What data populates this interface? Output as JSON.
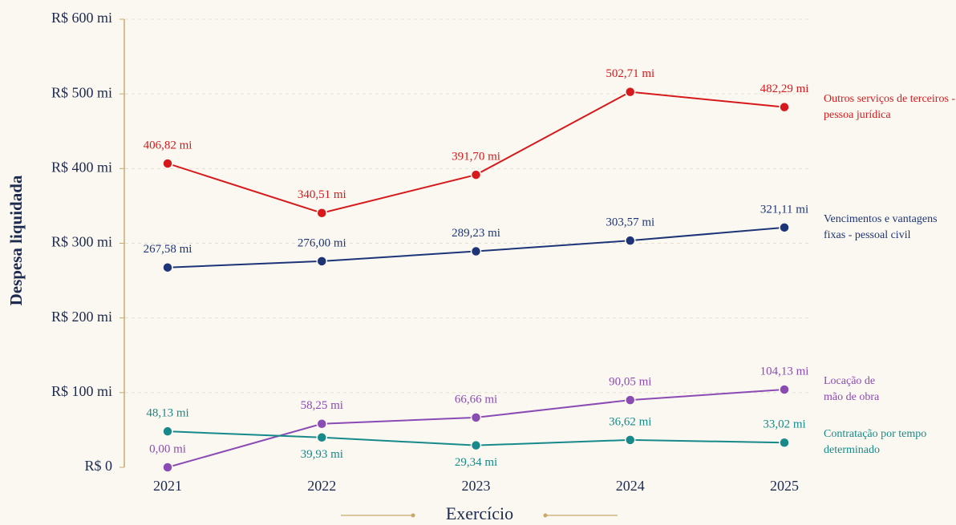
{
  "chart_data": {
    "type": "line",
    "x_label": "Exercício",
    "y_label": "Despesa liquidada",
    "categories": [
      "2021",
      "2022",
      "2023",
      "2024",
      "2025"
    ],
    "series": [
      {
        "name": "Outros serviços de terceiros - pessoa jurídica",
        "color": "#d7191c",
        "values": [
          406.82,
          340.51,
          391.7,
          502.71,
          482.29
        ],
        "value_labels": [
          "406,82 mi",
          "340,51 mi",
          "391,70 mi",
          "502,71 mi",
          "482,29 mi"
        ]
      },
      {
        "name": "Vencimentos e vantagens fixas - pessoal civil",
        "color": "#1d3578",
        "values": [
          267.58,
          276.0,
          289.23,
          303.57,
          321.11
        ],
        "value_labels": [
          "267,58 mi",
          "276,00 mi",
          "289,23 mi",
          "303,57 mi",
          "321,11 mi"
        ]
      },
      {
        "name": "Locação de mão de obra",
        "color": "#8a4bb5",
        "values": [
          0.0,
          58.25,
          66.66,
          90.05,
          104.13
        ],
        "value_labels": [
          "0,00 mi",
          "58,25 mi",
          "66,66 mi",
          "90,05 mi",
          "104,13 mi"
        ]
      },
      {
        "name": "Contratação por tempo determinado",
        "color": "#17898a",
        "values": [
          48.13,
          39.93,
          29.34,
          36.62,
          33.02
        ],
        "value_labels": [
          "48,13 mi",
          "39,93 mi",
          "29,34 mi",
          "36,62 mi",
          "33,02 mi"
        ]
      }
    ],
    "ylim": [
      0,
      600
    ],
    "yticks": [
      {
        "value": 0,
        "label": "R$ 0"
      },
      {
        "value": 100,
        "label": "R$ 100 mi"
      },
      {
        "value": 200,
        "label": "R$ 200 mi"
      },
      {
        "value": 300,
        "label": "R$ 300 mi"
      },
      {
        "value": 400,
        "label": "R$ 400 mi"
      },
      {
        "value": 500,
        "label": "R$ 500 mi"
      },
      {
        "value": 600,
        "label": "R$ 600 mi"
      }
    ],
    "grid": true
  }
}
